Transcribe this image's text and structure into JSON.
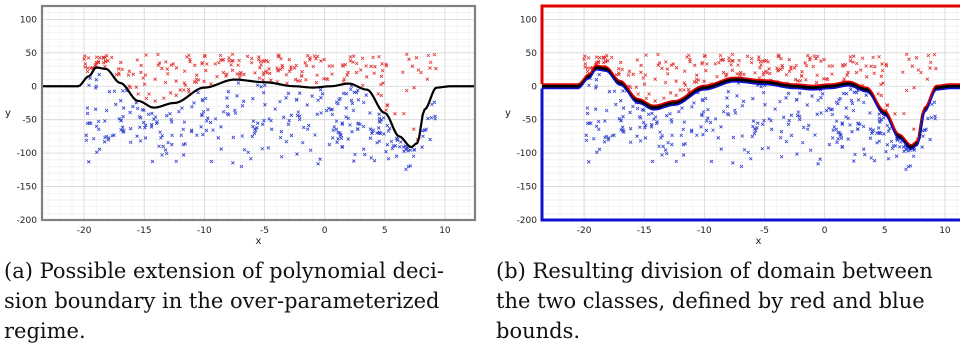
{
  "chart_data": [
    {
      "type": "scatter",
      "xlabel": "x",
      "ylabel": "y",
      "xlim": [
        -23.5,
        12.5
      ],
      "ylim": [
        -200,
        120
      ],
      "xticks": [
        -20,
        -15,
        -10,
        -5,
        0,
        5,
        10
      ],
      "yticks": [
        100,
        50,
        0,
        -50,
        -100,
        -150,
        -200
      ],
      "grid": true,
      "frame_color": "#808080",
      "series": [
        {
          "color": "#e03030",
          "marker": "x",
          "x_range": [
            -19.5,
            9
          ],
          "y_range": "above decision boundary, up to 50"
        },
        {
          "color": "#3040d0",
          "marker": "x",
          "x_range": [
            -20,
            9
          ],
          "y_range": "below decision boundary, down to -130"
        },
        {
          "color": "#000000",
          "line": "decision boundary",
          "x": [
            -23.5,
            -20.5,
            -19.6,
            -19,
            -18.2,
            -17,
            -15.5,
            -14.2,
            -12.5,
            -10,
            -7.5,
            -5,
            -2.5,
            -1,
            0.5,
            2,
            3.5,
            5,
            6.2,
            7.2,
            7.7,
            8.3,
            9.3,
            10.5,
            12.5
          ],
          "y": [
            0,
            0,
            15,
            28,
            26,
            5,
            -22,
            -32,
            -25,
            -2,
            10,
            6,
            0,
            -2,
            0,
            4,
            -5,
            -40,
            -75,
            -91,
            -85,
            -35,
            -2,
            0,
            0
          ]
        }
      ],
      "caption": "(a) Possible extension of polynomial decision boundary in the over-parameterized regime."
    },
    {
      "type": "scatter",
      "xlabel": "x",
      "ylabel": "y",
      "xlim": [
        -23.5,
        12.5
      ],
      "ylim": [
        -200,
        120
      ],
      "xticks": [
        -20,
        -15,
        -10,
        -5,
        0,
        5,
        10
      ],
      "yticks": [
        100,
        50,
        0,
        -50,
        -100,
        -150,
        -200
      ],
      "grid": true,
      "bounds": [
        {
          "name": "red",
          "color": "#e00000",
          "description": "upper region boundary: top frame at 120 and left edge, down to decision curve"
        },
        {
          "name": "blue",
          "color": "#1010d0",
          "description": "lower region boundary: bottom frame at -200 and left edge, up to decision curve"
        }
      ],
      "caption": "(b) Resulting division of domain between the two classes, defined by red and blue bounds."
    }
  ],
  "captions": {
    "a": [
      "(a) Possible extension of polynomial deci-",
      "sion boundary in the over-parameterized",
      "regime."
    ],
    "b": [
      "(b) Resulting division of domain between",
      "the two classes, defined by red and blue",
      "bounds."
    ]
  },
  "axes": {
    "xlabel": "x",
    "ylabel": "y"
  }
}
